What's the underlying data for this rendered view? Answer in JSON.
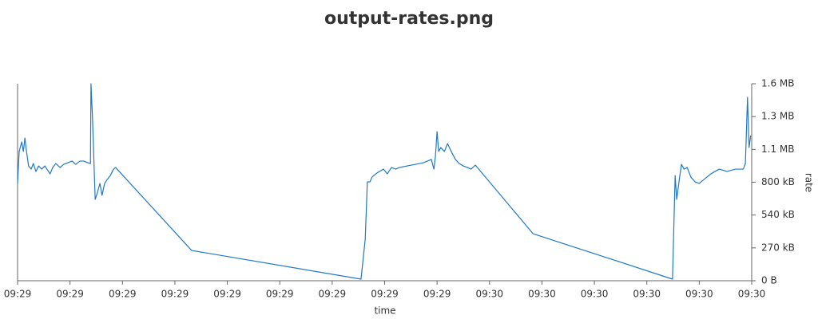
{
  "chart_data": {
    "type": "line",
    "title": "output-rates.png",
    "x_label": "time",
    "y_label": "rate",
    "y_axis_side": "right",
    "color": "#1f78c8",
    "x": [
      0,
      0.03,
      0.08,
      0.11,
      0.14,
      0.17,
      0.21,
      0.26,
      0.3,
      0.35,
      0.4,
      0.46,
      0.52,
      0.58,
      0.62,
      0.67,
      0.73,
      0.81,
      0.88,
      0.96,
      1.04,
      1.11,
      1.19,
      1.26,
      1.34,
      1.39,
      1.4,
      1.43,
      1.48,
      1.52,
      1.57,
      1.61,
      1.66,
      1.71,
      1.77,
      1.83,
      1.87,
      3.32,
      6.55,
      6.63,
      6.67,
      6.72,
      6.76,
      6.83,
      6.9,
      6.98,
      7.05,
      7.13,
      7.21,
      7.28,
      7.43,
      7.59,
      7.74,
      7.89,
      7.94,
      7.97,
      8.0,
      8.03,
      8.07,
      8.14,
      8.2,
      8.27,
      8.35,
      8.42,
      8.5,
      8.58,
      8.65,
      8.73,
      9.83,
      12.49,
      12.54,
      12.57,
      12.62,
      12.66,
      12.71,
      12.77,
      12.84,
      12.92,
      13.0,
      13.07,
      13.22,
      13.38,
      13.53,
      13.69,
      13.84,
      13.88,
      13.92,
      13.95,
      13.98
    ],
    "values": [
      794,
      1055,
      1133,
      1055,
      1165,
      1055,
      937,
      911,
      957,
      892,
      937,
      911,
      937,
      898,
      872,
      924,
      957,
      924,
      950,
      963,
      977,
      950,
      977,
      977,
      963,
      957,
      1608,
      1315,
      664,
      716,
      794,
      697,
      794,
      827,
      859,
      911,
      924,
      247,
      13,
      339,
      807,
      807,
      846,
      872,
      892,
      911,
      872,
      924,
      911,
      924,
      937,
      950,
      963,
      990,
      911,
      1022,
      1217,
      1055,
      1087,
      1055,
      1120,
      1055,
      990,
      957,
      937,
      924,
      911,
      944,
      384,
      13,
      859,
      664,
      827,
      950,
      911,
      924,
      846,
      807,
      794,
      820,
      872,
      911,
      892,
      911,
      911,
      957,
      1497,
      1087,
      1185
    ],
    "xlim": [
      0,
      14
    ],
    "xticks": [
      {
        "value": 0,
        "label": "09:29"
      },
      {
        "value": 1,
        "label": "09:29"
      },
      {
        "value": 2,
        "label": "09:29"
      },
      {
        "value": 3,
        "label": "09:29"
      },
      {
        "value": 4,
        "label": "09:29"
      },
      {
        "value": 5,
        "label": "09:29"
      },
      {
        "value": 6,
        "label": "09:29"
      },
      {
        "value": 7,
        "label": "09:29"
      },
      {
        "value": 8,
        "label": "09:29"
      },
      {
        "value": 9,
        "label": "09:30"
      },
      {
        "value": 10,
        "label": "09:30"
      },
      {
        "value": 11,
        "label": "09:30"
      },
      {
        "value": 12,
        "label": "09:30"
      },
      {
        "value": 13,
        "label": "09:30"
      },
      {
        "value": 14,
        "label": "09:30"
      }
    ],
    "ylim": [
      0,
      1608
    ],
    "yticks": [
      {
        "value": 0,
        "label": "0 B"
      },
      {
        "value": 268,
        "label": "270 kB"
      },
      {
        "value": 536,
        "label": "540 kB"
      },
      {
        "value": 804,
        "label": "800 kB"
      },
      {
        "value": 1072,
        "label": "1.1 MB"
      },
      {
        "value": 1340,
        "label": "1.3 MB"
      },
      {
        "value": 1608,
        "label": "1.6 MB"
      }
    ]
  }
}
